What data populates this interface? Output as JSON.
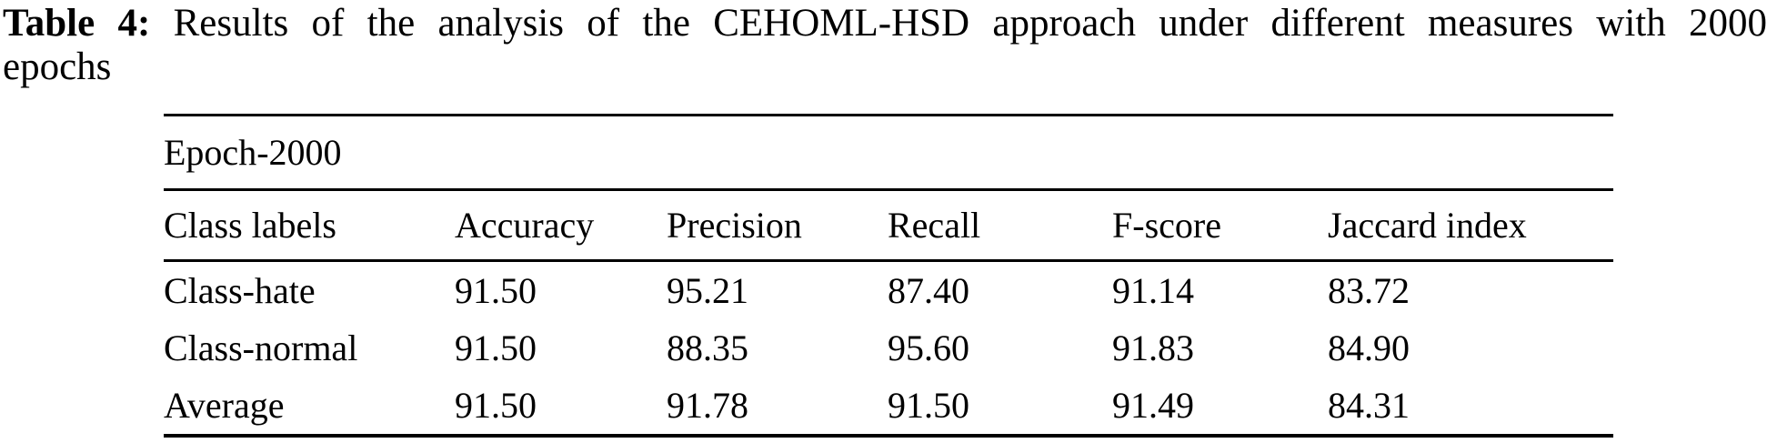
{
  "caption": {
    "label": "Table 4:",
    "line1": "Results of the analysis of the CEHOML-HSD approach under different measures with 2000",
    "line2": "epochs"
  },
  "table": {
    "group_header": "Epoch-2000",
    "columns": [
      "Class labels",
      "Accuracy",
      "Precision",
      "Recall",
      "F-score",
      "Jaccard index"
    ],
    "rows": [
      {
        "label": "Class-hate",
        "values": [
          "91.50",
          "95.21",
          "87.40",
          "91.14",
          "83.72"
        ]
      },
      {
        "label": "Class-normal",
        "values": [
          "91.50",
          "88.35",
          "95.60",
          "91.83",
          "84.90"
        ]
      },
      {
        "label": "Average",
        "values": [
          "91.50",
          "91.78",
          "91.50",
          "91.49",
          "84.31"
        ]
      }
    ]
  },
  "colors": {
    "text": "#000000",
    "background": "#ffffff",
    "rule": "#000000"
  }
}
